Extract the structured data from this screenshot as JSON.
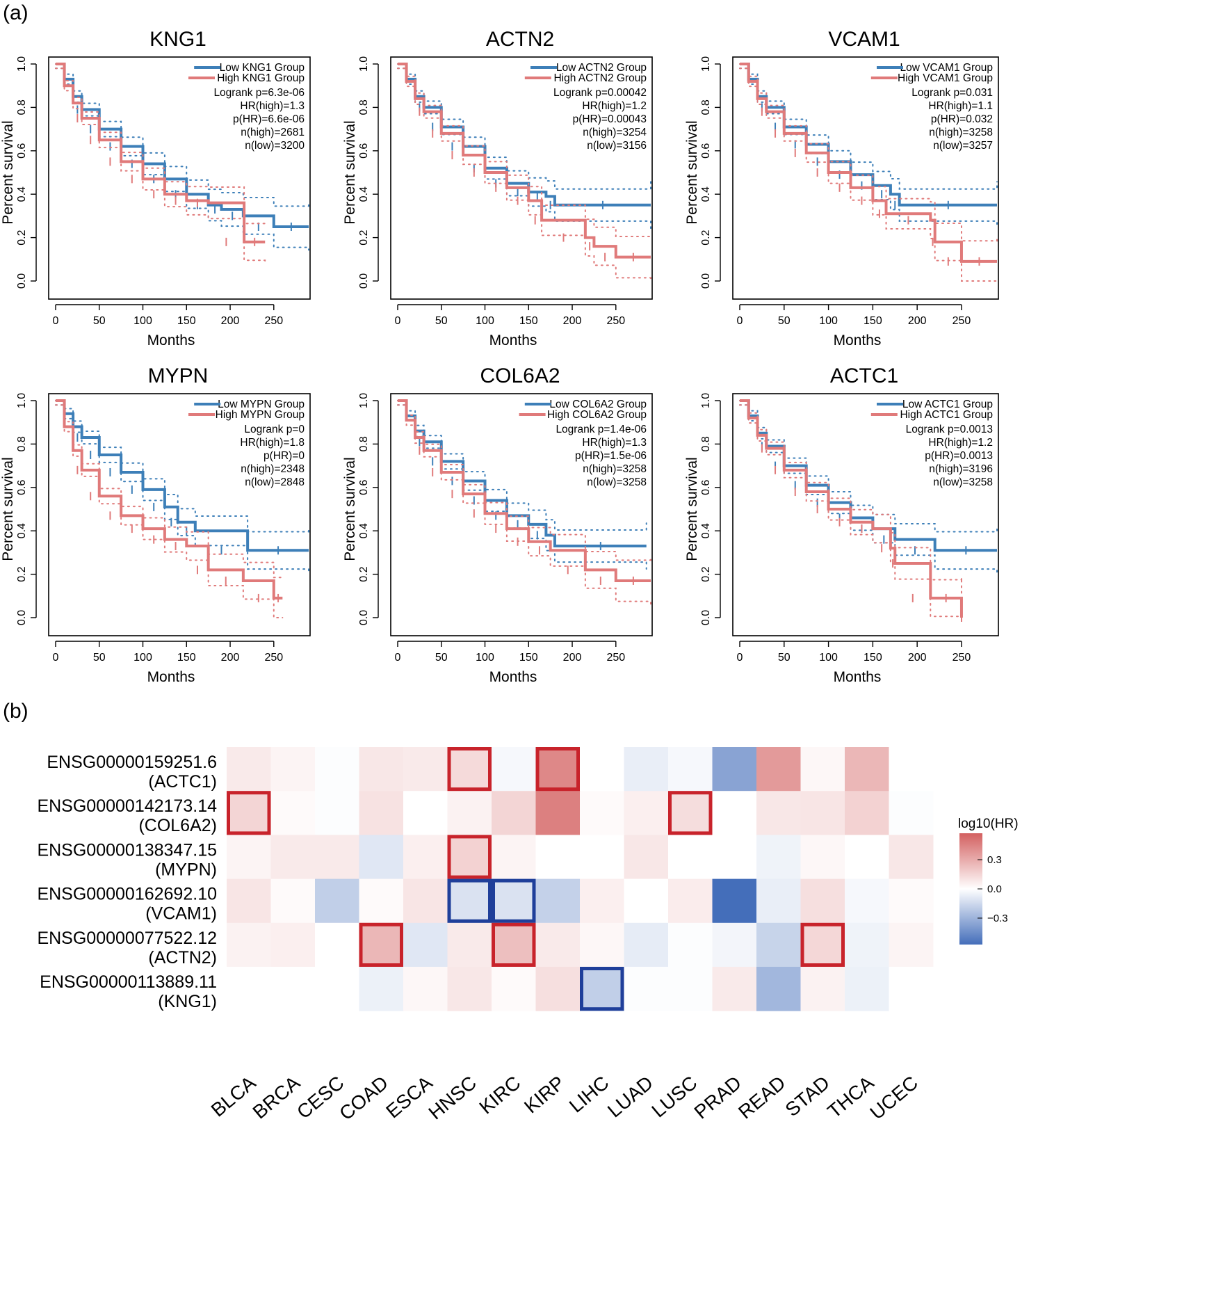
{
  "panel_labels": {
    "a": "(a)",
    "b": "(b)"
  },
  "chart_data": [
    {
      "type": "line",
      "title": "KNG1",
      "xlabel": "Months",
      "ylabel": "Percent survival",
      "xlim": [
        0,
        290
      ],
      "ylim": [
        0,
        1.0
      ],
      "xticks": [
        "0",
        "50",
        "100",
        "150",
        "200",
        "250"
      ],
      "yticks": [
        "0.0",
        "0.2",
        "0.4",
        "0.6",
        "0.8",
        "1.0"
      ],
      "legend": [
        "Low KNG1 Group",
        "High KNG1 Group"
      ],
      "stats": [
        "Logrank p=6.3e-06",
        "HR(high)=1.3",
        "p(HR)=6.6e-06",
        "n(high)=2681",
        "n(low)=3200"
      ],
      "series": [
        {
          "color": "#3d7fb8",
          "x": [
            0,
            10,
            20,
            30,
            50,
            75,
            100,
            125,
            150,
            175,
            190,
            215,
            250,
            290
          ],
          "y": [
            1.0,
            0.93,
            0.85,
            0.79,
            0.7,
            0.62,
            0.54,
            0.47,
            0.4,
            0.35,
            0.33,
            0.3,
            0.25,
            0.25
          ]
        },
        {
          "color": "#e07a7a",
          "x": [
            0,
            10,
            20,
            30,
            50,
            75,
            100,
            125,
            150,
            175,
            216,
            240
          ],
          "y": [
            1.0,
            0.9,
            0.82,
            0.75,
            0.65,
            0.55,
            0.47,
            0.4,
            0.37,
            0.36,
            0.18,
            0.18
          ]
        }
      ]
    },
    {
      "type": "line",
      "title": "ACTN2",
      "xlabel": "Months",
      "ylabel": "Percent survival",
      "xlim": [
        0,
        290
      ],
      "ylim": [
        0,
        1.0
      ],
      "xticks": [
        "0",
        "50",
        "100",
        "150",
        "200",
        "250"
      ],
      "yticks": [
        "0.0",
        "0.2",
        "0.4",
        "0.6",
        "0.8",
        "1.0"
      ],
      "legend": [
        "Low ACTN2 Group",
        "High ACTN2 Group"
      ],
      "stats": [
        "Logrank p=0.00042",
        "HR(high)=1.2",
        "p(HR)=0.00043",
        "n(high)=3254",
        "n(low)=3156"
      ],
      "series": [
        {
          "color": "#3d7fb8",
          "x": [
            0,
            10,
            20,
            30,
            50,
            75,
            100,
            125,
            150,
            170,
            180,
            290
          ],
          "y": [
            1.0,
            0.93,
            0.85,
            0.8,
            0.71,
            0.62,
            0.52,
            0.45,
            0.41,
            0.39,
            0.35,
            0.35
          ]
        },
        {
          "color": "#e07a7a",
          "x": [
            0,
            10,
            20,
            30,
            50,
            75,
            100,
            125,
            150,
            165,
            215,
            225,
            250,
            290
          ],
          "y": [
            1.0,
            0.92,
            0.84,
            0.78,
            0.68,
            0.58,
            0.5,
            0.43,
            0.37,
            0.28,
            0.2,
            0.16,
            0.11,
            0.11
          ]
        }
      ]
    },
    {
      "type": "line",
      "title": "VCAM1",
      "xlabel": "Months",
      "ylabel": "Percent survival",
      "xlim": [
        0,
        290
      ],
      "ylim": [
        0,
        1.0
      ],
      "xticks": [
        "0",
        "50",
        "100",
        "150",
        "200",
        "250"
      ],
      "yticks": [
        "0.0",
        "0.2",
        "0.4",
        "0.6",
        "0.8",
        "1.0"
      ],
      "legend": [
        "Low VCAM1 Group",
        "High VCAM1 Group"
      ],
      "stats": [
        "Logrank p=0.031",
        "HR(high)=1.1",
        "p(HR)=0.032",
        "n(high)=3258",
        "n(low)=3257"
      ],
      "series": [
        {
          "color": "#3d7fb8",
          "x": [
            0,
            10,
            20,
            30,
            50,
            75,
            100,
            125,
            150,
            170,
            180,
            290
          ],
          "y": [
            1.0,
            0.93,
            0.85,
            0.8,
            0.71,
            0.63,
            0.55,
            0.49,
            0.44,
            0.4,
            0.35,
            0.35
          ]
        },
        {
          "color": "#e07a7a",
          "x": [
            0,
            10,
            20,
            30,
            50,
            75,
            100,
            125,
            150,
            165,
            215,
            220,
            250,
            290
          ],
          "y": [
            1.0,
            0.92,
            0.84,
            0.78,
            0.68,
            0.59,
            0.5,
            0.43,
            0.37,
            0.31,
            0.28,
            0.18,
            0.09,
            0.09
          ]
        }
      ]
    },
    {
      "type": "line",
      "title": "MYPN",
      "xlabel": "Months",
      "ylabel": "Percent survival",
      "xlim": [
        0,
        290
      ],
      "ylim": [
        0,
        1.0
      ],
      "xticks": [
        "0",
        "50",
        "100",
        "150",
        "200",
        "250"
      ],
      "yticks": [
        "0.0",
        "0.2",
        "0.4",
        "0.6",
        "0.8",
        "1.0"
      ],
      "legend": [
        "Low MYPN Group",
        "High MYPN Group"
      ],
      "stats": [
        "Logrank p=0",
        "HR(high)=1.8",
        "p(HR)=0",
        "n(high)=2348",
        "n(low)=2848"
      ],
      "series": [
        {
          "color": "#3d7fb8",
          "x": [
            0,
            10,
            20,
            30,
            50,
            75,
            100,
            125,
            140,
            160,
            220,
            290
          ],
          "y": [
            1.0,
            0.94,
            0.88,
            0.83,
            0.75,
            0.67,
            0.59,
            0.51,
            0.44,
            0.4,
            0.31,
            0.31
          ]
        },
        {
          "color": "#e07a7a",
          "x": [
            0,
            10,
            20,
            30,
            50,
            75,
            100,
            125,
            150,
            175,
            215,
            250,
            260
          ],
          "y": [
            1.0,
            0.88,
            0.77,
            0.68,
            0.56,
            0.47,
            0.41,
            0.36,
            0.33,
            0.22,
            0.17,
            0.09,
            0.09
          ]
        }
      ]
    },
    {
      "type": "line",
      "title": "COL6A2",
      "xlabel": "Months",
      "ylabel": "Percent survival",
      "xlim": [
        0,
        290
      ],
      "ylim": [
        0,
        1.0
      ],
      "xticks": [
        "0",
        "50",
        "100",
        "150",
        "200",
        "250"
      ],
      "yticks": [
        "0.0",
        "0.2",
        "0.4",
        "0.6",
        "0.8",
        "1.0"
      ],
      "legend": [
        "Low COL6A2 Group",
        "High COL6A2 Group"
      ],
      "stats": [
        "Logrank p=1.4e-06",
        "HR(high)=1.3",
        "p(HR)=1.5e-06",
        "n(high)=3258",
        "n(low)=3258"
      ],
      "series": [
        {
          "color": "#3d7fb8",
          "x": [
            0,
            10,
            20,
            30,
            50,
            75,
            100,
            125,
            150,
            170,
            180,
            285
          ],
          "y": [
            1.0,
            0.93,
            0.86,
            0.81,
            0.72,
            0.63,
            0.54,
            0.47,
            0.43,
            0.38,
            0.33,
            0.33
          ]
        },
        {
          "color": "#e07a7a",
          "x": [
            0,
            10,
            20,
            30,
            50,
            75,
            100,
            125,
            150,
            175,
            215,
            250,
            290
          ],
          "y": [
            1.0,
            0.91,
            0.83,
            0.77,
            0.67,
            0.57,
            0.48,
            0.41,
            0.35,
            0.31,
            0.22,
            0.17,
            0.17
          ]
        }
      ]
    },
    {
      "type": "line",
      "title": "ACTC1",
      "xlabel": "Months",
      "ylabel": "Percent survival",
      "xlim": [
        0,
        290
      ],
      "ylim": [
        0,
        1.0
      ],
      "xticks": [
        "0",
        "50",
        "100",
        "150",
        "200",
        "250"
      ],
      "yticks": [
        "0.0",
        "0.2",
        "0.4",
        "0.6",
        "0.8",
        "1.0"
      ],
      "legend": [
        "Low ACTC1 Group",
        "High ACTC1 Group"
      ],
      "stats": [
        "Logrank p=0.0013",
        "HR(high)=1.2",
        "p(HR)=0.0013",
        "n(high)=3196",
        "n(low)=3258"
      ],
      "series": [
        {
          "color": "#3d7fb8",
          "x": [
            0,
            10,
            20,
            30,
            50,
            75,
            100,
            125,
            150,
            175,
            220,
            290
          ],
          "y": [
            1.0,
            0.93,
            0.85,
            0.79,
            0.7,
            0.61,
            0.53,
            0.46,
            0.41,
            0.36,
            0.31,
            0.31
          ]
        },
        {
          "color": "#e07a7a",
          "x": [
            0,
            10,
            20,
            30,
            50,
            75,
            100,
            125,
            150,
            170,
            175,
            215,
            250,
            250
          ],
          "y": [
            1.0,
            0.92,
            0.84,
            0.78,
            0.68,
            0.58,
            0.5,
            0.44,
            0.41,
            0.32,
            0.25,
            0.09,
            0.09,
            0.0
          ]
        }
      ]
    },
    {
      "type": "heatmap",
      "legend_title": "log10(HR)",
      "colorbar_ticks": [
        "0.3",
        "0.0",
        "−0.3"
      ],
      "columns": [
        "BLCA",
        "BRCA",
        "CESC",
        "COAD",
        "ESCA",
        "HNSC",
        "KIRC",
        "KIRP",
        "LIHC",
        "LUAD",
        "LUSC",
        "PRAD",
        "READ",
        "STAD",
        "THCA",
        "UCEC"
      ],
      "rows": [
        {
          "id": "ENSG00000159251.6",
          "gene": "(ACTC1)",
          "values": [
            0.08,
            0.04,
            -0.01,
            0.09,
            0.08,
            0.14,
            -0.03,
            0.45,
            null,
            -0.07,
            -0.03,
            -0.38,
            0.38,
            0.03,
            0.27,
            0.0
          ],
          "boxed": [
            5,
            7
          ],
          "box_color": "#c8232b"
        },
        {
          "id": "ENSG00000142173.14",
          "gene": "(COL6A2)",
          "values": [
            0.16,
            0.02,
            -0.01,
            0.11,
            null,
            0.05,
            0.16,
            0.48,
            0.02,
            0.06,
            0.13,
            null,
            0.09,
            0.1,
            0.17,
            -0.01
          ],
          "boxed": [
            0,
            10
          ],
          "box_color": "#c8232b"
        },
        {
          "id": "ENSG00000138347.15",
          "gene": "(MYPN)",
          "values": [
            0.04,
            0.08,
            0.08,
            -0.1,
            0.06,
            0.17,
            0.04,
            null,
            null,
            0.09,
            null,
            null,
            -0.05,
            0.03,
            null,
            0.09
          ],
          "boxed": [
            5
          ],
          "box_color": "#c8232b"
        },
        {
          "id": "ENSG00000162692.10",
          "gene": "(VCAM1)",
          "values": [
            0.1,
            0.02,
            -0.2,
            0.02,
            0.1,
            -0.12,
            -0.12,
            -0.19,
            0.06,
            0.0,
            0.07,
            -0.6,
            -0.07,
            0.12,
            -0.03,
            0.02
          ],
          "boxed": [
            5,
            6
          ],
          "box_color": "#1f3f9a"
        },
        {
          "id": "ENSG00000077522.12",
          "gene": "(ACTN2)",
          "values": [
            0.05,
            0.06,
            null,
            0.27,
            -0.1,
            0.08,
            0.24,
            0.08,
            0.03,
            -0.08,
            -0.01,
            -0.04,
            -0.18,
            0.15,
            -0.05,
            0.04
          ],
          "boxed": [
            3,
            6,
            13
          ],
          "box_color": "#c8232b"
        },
        {
          "id": "ENSG00000113889.11",
          "gene": "(KNG1)",
          "values": [
            null,
            null,
            null,
            -0.06,
            0.03,
            0.09,
            0.02,
            0.12,
            -0.2,
            -0.01,
            -0.01,
            0.08,
            -0.3,
            0.05,
            -0.06,
            null
          ],
          "boxed": [
            8
          ],
          "box_color": "#1f3f9a"
        }
      ]
    }
  ]
}
